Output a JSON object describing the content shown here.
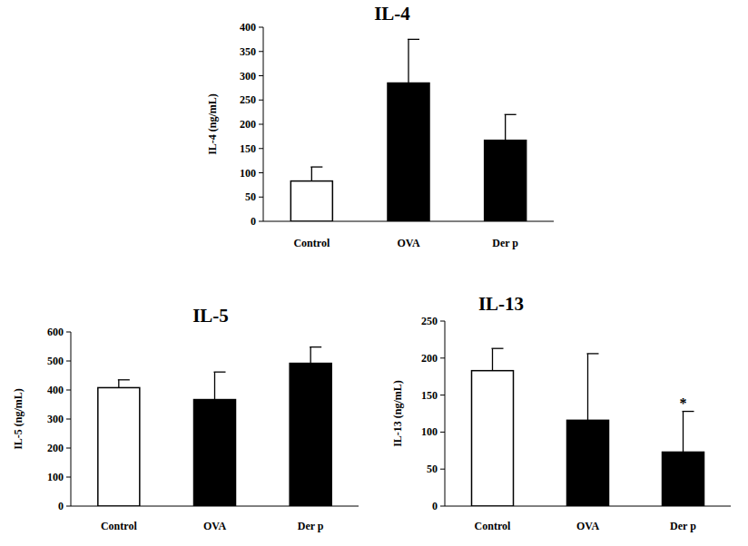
{
  "chart_data": [
    {
      "type": "bar",
      "title": "IL-4",
      "y_label": "IL-4 (ng/mL)",
      "categories": [
        "Control",
        "OVA",
        "Der p"
      ],
      "values": [
        83,
        285,
        167
      ],
      "errors": [
        29,
        90,
        53
      ],
      "colors": [
        "#ffffff",
        "#000000",
        "#000000"
      ],
      "ylim": [
        0,
        400
      ],
      "yticks": [
        0,
        50,
        100,
        150,
        200,
        250,
        300,
        350,
        400
      ]
    },
    {
      "type": "bar",
      "title": "IL-5",
      "y_label": "IL-5 (ng/mL)",
      "categories": [
        "Control",
        "OVA",
        "Der p"
      ],
      "values": [
        408,
        367,
        492
      ],
      "errors": [
        27,
        95,
        56
      ],
      "colors": [
        "#ffffff",
        "#000000",
        "#000000"
      ],
      "ylim": [
        0,
        600
      ],
      "yticks": [
        0,
        100,
        200,
        300,
        400,
        500,
        600
      ]
    },
    {
      "type": "bar",
      "title": "IL-13",
      "y_label": "IL-13 (ng/mL)",
      "categories": [
        "Control",
        "OVA",
        "Der p"
      ],
      "values": [
        183,
        116,
        73
      ],
      "errors": [
        30,
        90,
        55
      ],
      "colors": [
        "#ffffff",
        "#000000",
        "#000000"
      ],
      "ylim": [
        0,
        250
      ],
      "yticks": [
        0,
        50,
        100,
        150,
        200,
        250
      ],
      "annotations": [
        {
          "category": "Der p",
          "text": "*"
        }
      ]
    }
  ]
}
